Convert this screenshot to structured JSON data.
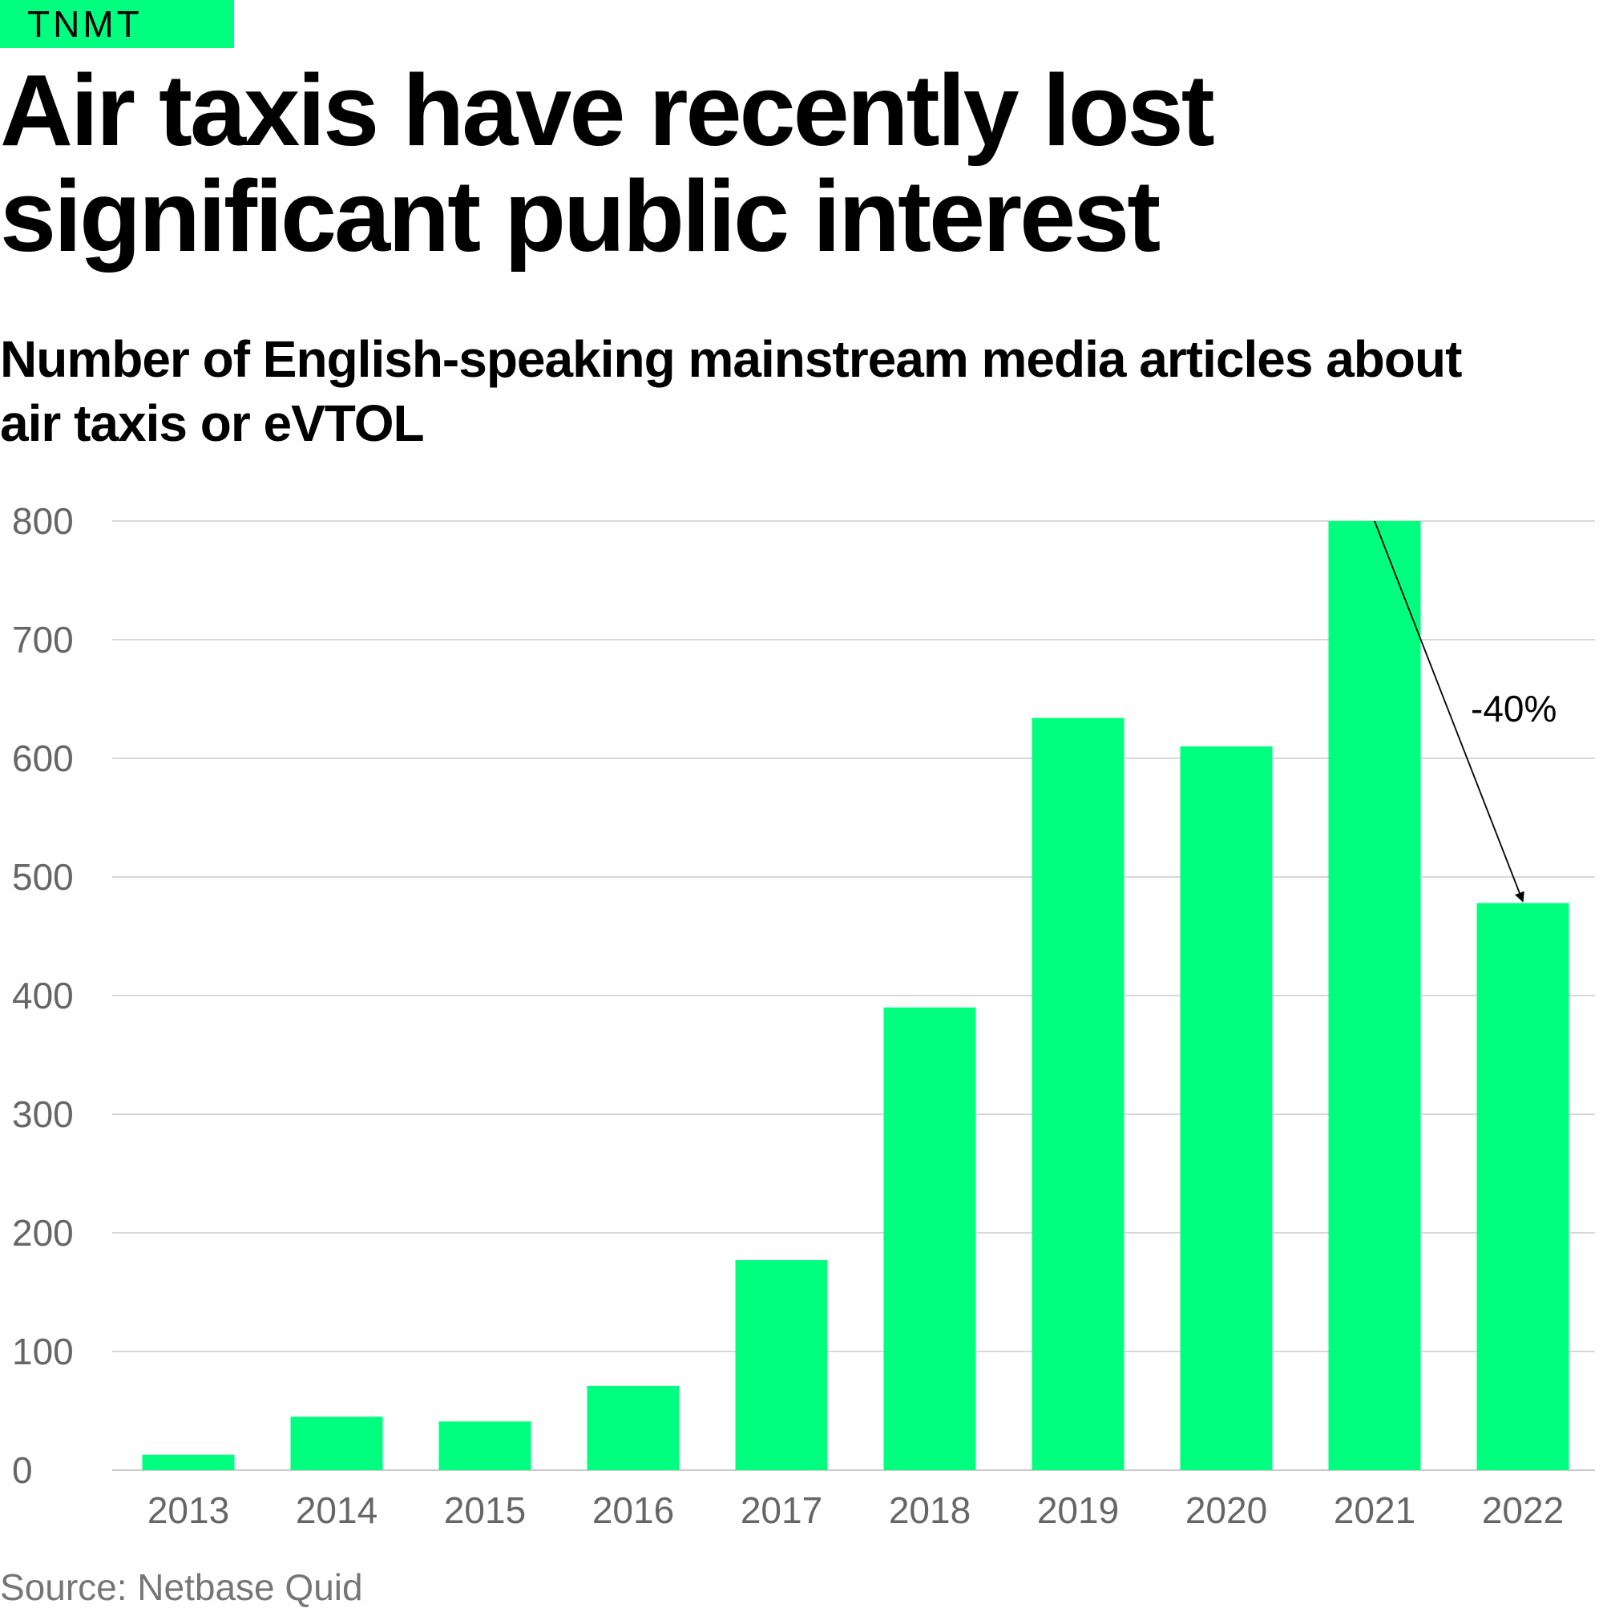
{
  "brand": {
    "label": "TNMT",
    "color": "#00ff7f"
  },
  "title": "Air taxis have recently lost significant public interest",
  "source": "Source: Netbase Quid",
  "chart_data": {
    "type": "bar",
    "title": "Number of English-speaking mainstream media articles about air taxis or eVTOL",
    "xlabel": "",
    "ylabel": "",
    "categories": [
      "2013",
      "2014",
      "2015",
      "2016",
      "2017",
      "2018",
      "2019",
      "2020",
      "2021",
      "2022"
    ],
    "values": [
      13,
      45,
      41,
      71,
      177,
      390,
      634,
      610,
      800,
      478
    ],
    "ylim": [
      0,
      800
    ],
    "yticks": [
      0,
      100,
      200,
      300,
      400,
      500,
      600,
      700,
      800
    ],
    "grid": true,
    "legend": "none",
    "bar_color": "#00ff7f",
    "gridline_color": "#cccccc",
    "annotation": {
      "text": "-40%",
      "from": "2021",
      "to": "2022"
    }
  }
}
